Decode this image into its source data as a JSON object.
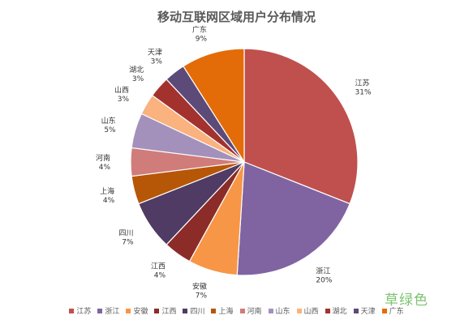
{
  "chart_data": {
    "type": "pie",
    "title": "移动互联网区域用户分布情况",
    "slices": [
      {
        "label": "江苏",
        "value": 31,
        "display": "31%",
        "color": "#c0504d"
      },
      {
        "label": "浙江",
        "value": 20,
        "display": "20%",
        "color": "#8064a2"
      },
      {
        "label": "安徽",
        "value": 7,
        "display": "7%",
        "color": "#f79646"
      },
      {
        "label": "江西",
        "value": 4,
        "display": "4%",
        "color": "#8b2c28"
      },
      {
        "label": "四川",
        "value": 7,
        "display": "7%",
        "color": "#4f3b63"
      },
      {
        "label": "上海",
        "value": 4,
        "display": "4%",
        "color": "#b65708"
      },
      {
        "label": "河南",
        "value": 4,
        "display": "4%",
        "color": "#d07c7a"
      },
      {
        "label": "山东",
        "value": 5,
        "display": "5%",
        "color": "#a391bc"
      },
      {
        "label": "山西",
        "value": 3,
        "display": "3%",
        "color": "#fab27e"
      },
      {
        "label": "湖北",
        "value": 3,
        "display": "3%",
        "color": "#a3322e"
      },
      {
        "label": "天津",
        "value": 3,
        "display": "3%",
        "color": "#5c4a78"
      },
      {
        "label": "广东",
        "value": 9,
        "display": "9%",
        "color": "#e36c09"
      }
    ],
    "start_angle_deg": 0,
    "direction": "clockwise",
    "legend": "bottom"
  },
  "watermark": "草绿色"
}
